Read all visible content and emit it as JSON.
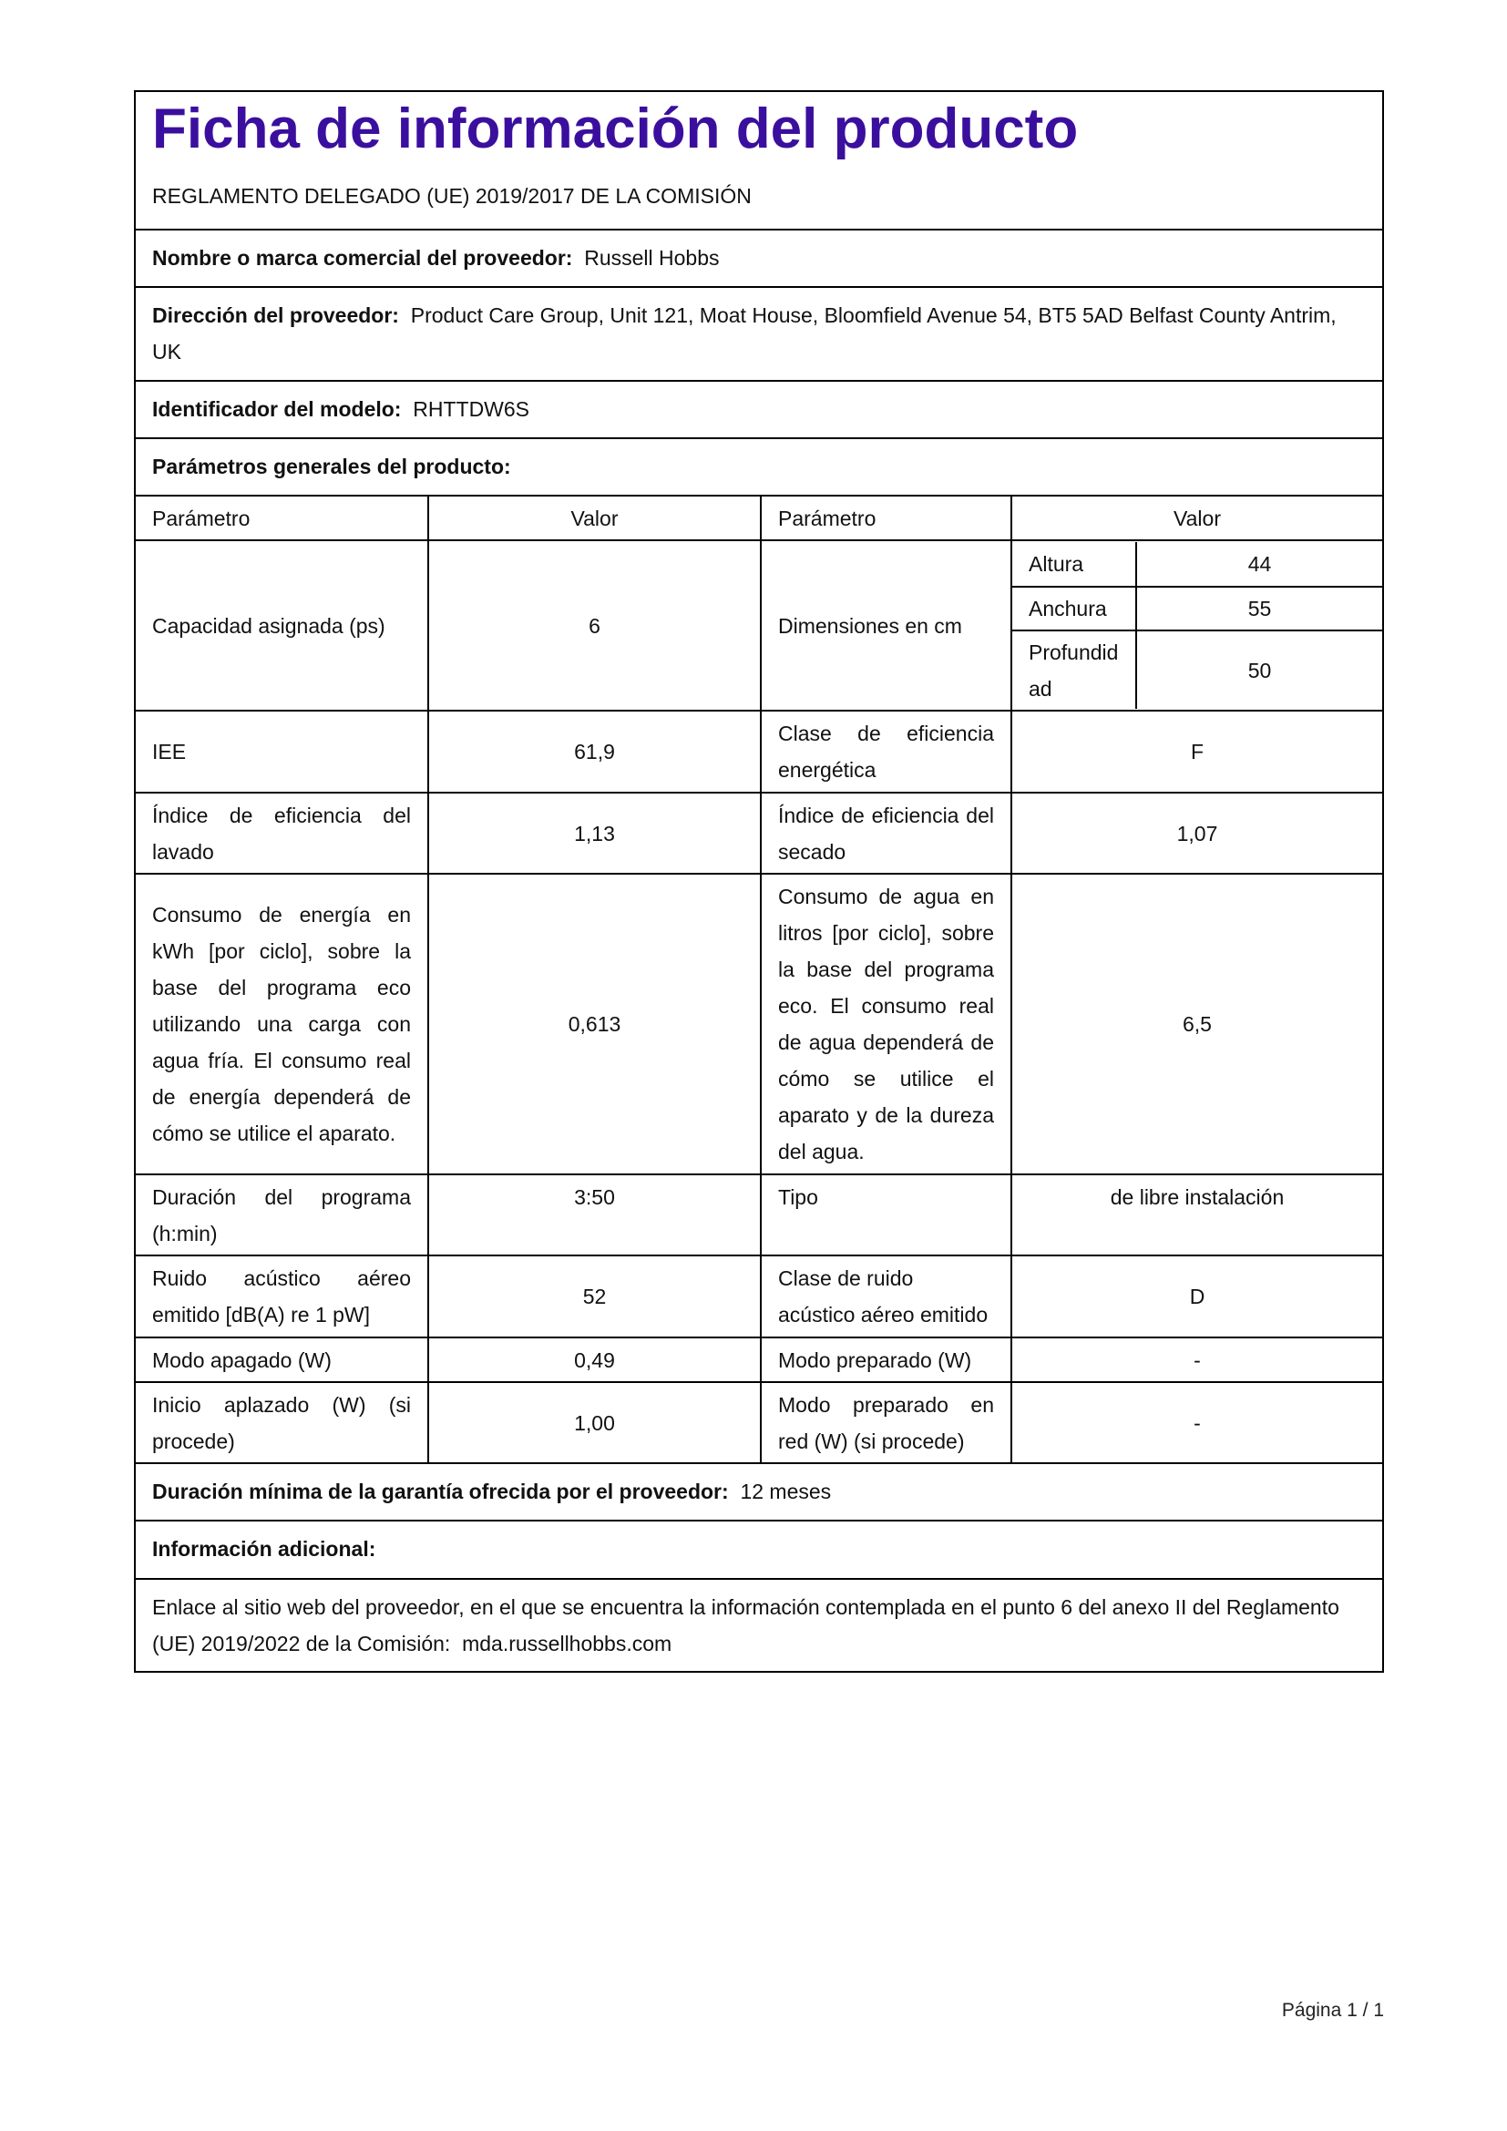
{
  "title": "Ficha de información del producto",
  "regulation": "REGLAMENTO DELEGADO (UE) 2019/2017 DE LA COMISIÓN",
  "supplier_name": {
    "label": "Nombre o marca comercial del proveedor:",
    "value": "Russell Hobbs"
  },
  "supplier_address": {
    "label": "Dirección del proveedor:",
    "value": "Product Care Group, Unit 121, Moat House, Bloomfield Avenue 54, BT5 5AD Belfast County Antrim, UK"
  },
  "model": {
    "label": "Identificador del modelo:",
    "value": "RHTTDW6S"
  },
  "general_params": "Parámetros generales del producto:",
  "headers": [
    "Parámetro",
    "Valor",
    "Parámetro",
    "Valor"
  ],
  "rows": {
    "capacity": {
      "p1": "Capacidad asignada (ps)",
      "v1": "6",
      "p2": "Dimensiones en cm"
    },
    "dims": [
      {
        "label": "Altura",
        "value": "44"
      },
      {
        "label": "Anchura",
        "value": "55"
      },
      {
        "label": "Profundidad",
        "value": "50"
      }
    ],
    "iee": {
      "p1": "IEE",
      "v1": "61,9",
      "p2": "Clase de eficiencia energética",
      "v2": "F"
    },
    "wash": {
      "p1": "Índice de eficiencia del lavado",
      "v1": "1,13",
      "p2": "Índice de eficiencia del secado",
      "v2": "1,07"
    },
    "consumption": {
      "p1": "Consumo de energía en kWh [por ciclo], sobre la base del programa eco utilizando una carga con agua fría. El consumo real de energía dependerá de cómo se utilice el aparato.",
      "v1": "0,613",
      "p2": "Consumo de agua en litros [por ciclo], sobre la base del programa eco. El consumo real de agua dependerá de cómo se utilice el aparato y de la dureza del agua.",
      "v2": "6,5"
    },
    "duration": {
      "p1": "Duración del programa (h:min)",
      "v1": "3:50",
      "p2": "Tipo",
      "v2": "de libre instalación"
    },
    "noise": {
      "p1": "Ruido acústico aéreo emitido [dB(A) re 1 pW]",
      "v1": "52",
      "p2": "Clase de ruido acústico aéreo emitido",
      "v2": "D"
    },
    "off": {
      "p1": "Modo apagado (W)",
      "v1": "0,49",
      "p2": "Modo preparado (W)",
      "v2": "-"
    },
    "delay": {
      "p1": "Inicio aplazado (W) (si procede)",
      "v1": "1,00",
      "p2": "Modo preparado en red (W) (si procede)",
      "v2": "-"
    }
  },
  "warranty": {
    "label": "Duración mínima de la garantía ofrecida por el proveedor:",
    "value": "12 meses"
  },
  "additional": "Información adicional:",
  "link": {
    "text": "Enlace al sitio web del proveedor, en el que se encuentra la información contemplada en el punto 6 del anexo II del Reglamento (UE) 2019/2022 de la Comisión:",
    "url": "mda.russellhobbs.com"
  },
  "footer": "Página 1 / 1",
  "colors": {
    "title": "#3b0f9e",
    "border": "#000000"
  }
}
